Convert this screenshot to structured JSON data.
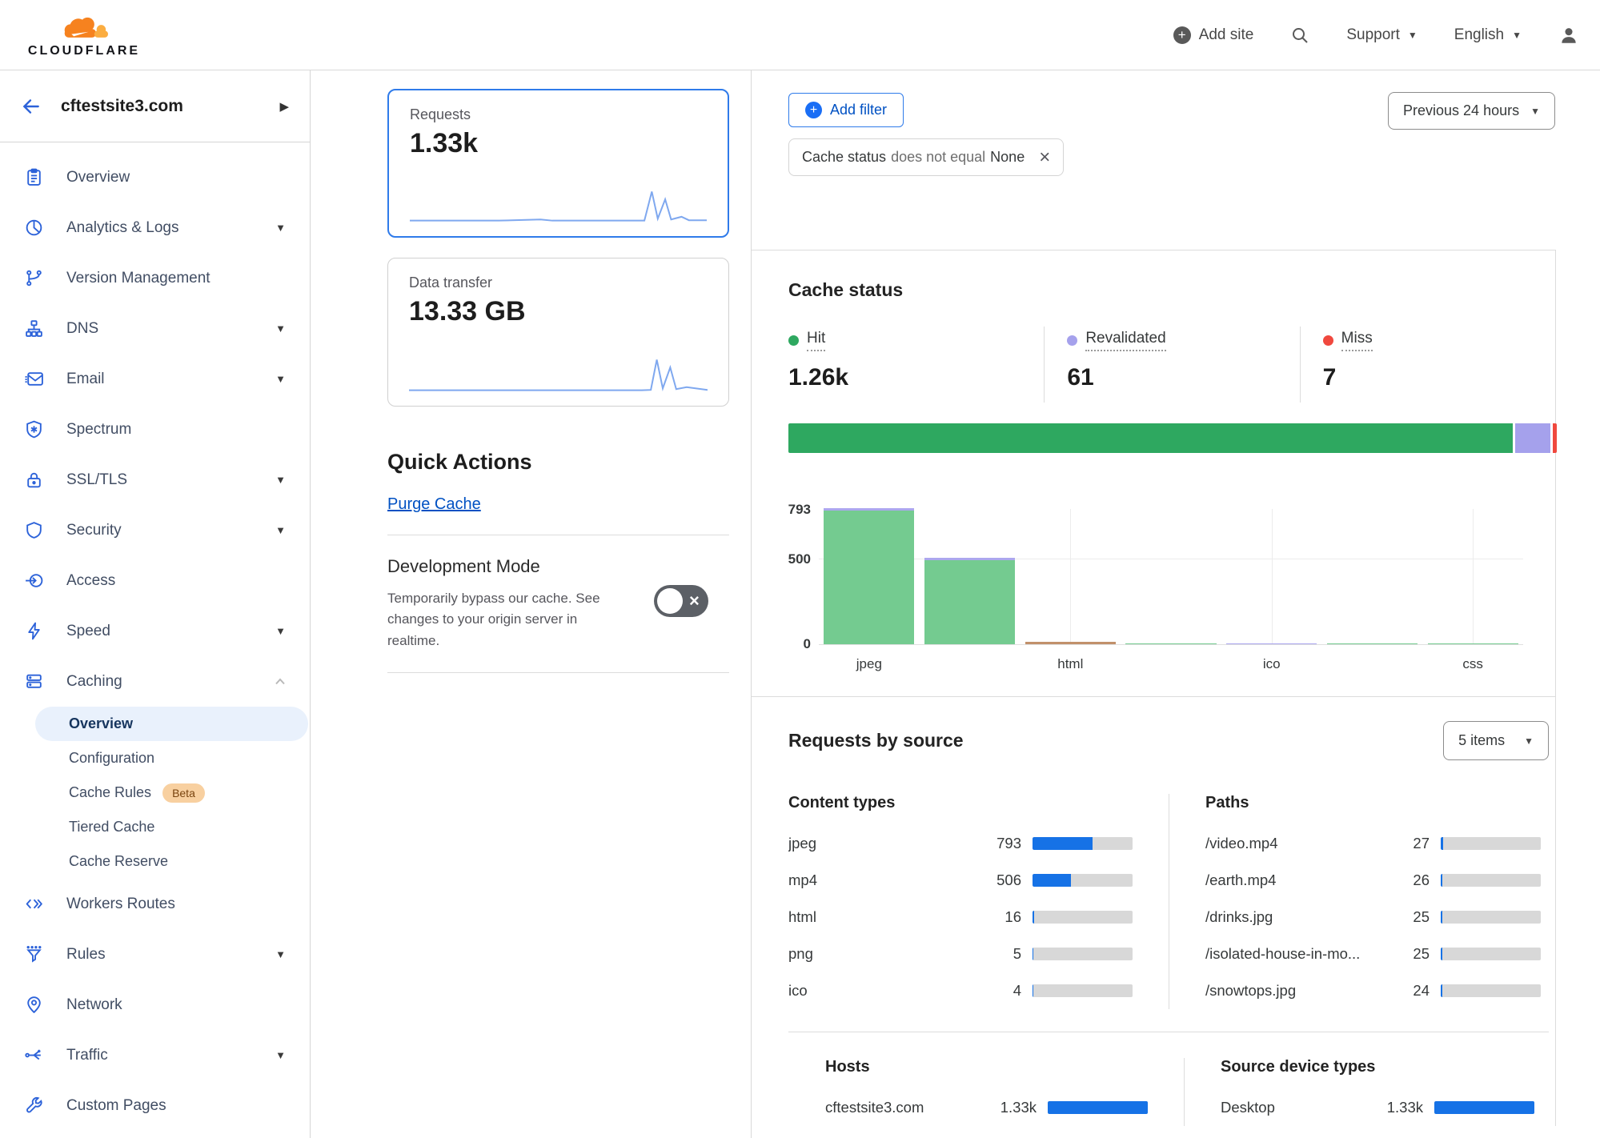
{
  "nav": {
    "logo_text": "CLOUDFLARE",
    "add_site_label": "Add site",
    "support_label": "Support",
    "language_label": "English"
  },
  "sidebar": {
    "site_name": "cftestsite3.com",
    "items": [
      {
        "label": "Overview"
      },
      {
        "label": "Analytics & Logs",
        "caret": "down"
      },
      {
        "label": "Version Management"
      },
      {
        "label": "DNS",
        "caret": "down"
      },
      {
        "label": "Email",
        "caret": "down"
      },
      {
        "label": "Spectrum"
      },
      {
        "label": "SSL/TLS",
        "caret": "down"
      },
      {
        "label": "Security",
        "caret": "down"
      },
      {
        "label": "Access"
      },
      {
        "label": "Speed",
        "caret": "down"
      },
      {
        "label": "Caching",
        "caret": "up",
        "expanded": true
      },
      {
        "label": "Workers Routes"
      },
      {
        "label": "Rules",
        "caret": "down"
      },
      {
        "label": "Network"
      },
      {
        "label": "Traffic",
        "caret": "down"
      },
      {
        "label": "Custom Pages"
      }
    ],
    "caching_sub": [
      {
        "label": "Overview",
        "active": true
      },
      {
        "label": "Configuration"
      },
      {
        "label": "Cache Rules",
        "badge": "Beta"
      },
      {
        "label": "Tiered Cache"
      },
      {
        "label": "Cache Reserve"
      }
    ]
  },
  "summary_cards": {
    "requests": {
      "label": "Requests",
      "value": "1.33k",
      "selected": true
    },
    "data_transfer": {
      "label": "Data transfer",
      "value": "13.33 GB",
      "selected": false
    }
  },
  "quick_actions": {
    "title": "Quick Actions",
    "purge_cache_label": "Purge Cache",
    "dev_mode": {
      "title": "Development Mode",
      "description": "Temporarily bypass our cache. See changes to your origin server in realtime.",
      "state": "off"
    }
  },
  "filters": {
    "add_filter_label": "Add filter",
    "chip": {
      "field": "Cache status",
      "operator": "does not equal",
      "value": "None"
    },
    "time_range": "Previous 24 hours"
  },
  "cache_status": {
    "title": "Cache status",
    "legend": [
      {
        "name": "Hit",
        "display": "1.26k",
        "color": "#2EA860"
      },
      {
        "name": "Revalidated",
        "display": "61",
        "color": "#A5A1EC"
      },
      {
        "name": "Miss",
        "display": "7",
        "color": "#F0483E"
      }
    ]
  },
  "requests_by_source": {
    "title": "Requests by source",
    "items_dropdown": "5 items",
    "total": 1330,
    "content_types": {
      "title": "Content types",
      "rows": [
        {
          "label": "jpeg",
          "display": "793",
          "value": 793
        },
        {
          "label": "mp4",
          "display": "506",
          "value": 506
        },
        {
          "label": "html",
          "display": "16",
          "value": 16
        },
        {
          "label": "png",
          "display": "5",
          "value": 5
        },
        {
          "label": "ico",
          "display": "4",
          "value": 4
        }
      ]
    },
    "paths": {
      "title": "Paths",
      "rows": [
        {
          "label": "/video.mp4",
          "display": "27",
          "value": 27
        },
        {
          "label": "/earth.mp4",
          "display": "26",
          "value": 26
        },
        {
          "label": "/drinks.jpg",
          "display": "25",
          "value": 25
        },
        {
          "label": "/isolated-house-in-mo...",
          "display": "25",
          "value": 25
        },
        {
          "label": "/snowtops.jpg",
          "display": "24",
          "value": 24
        }
      ]
    },
    "hosts": {
      "title": "Hosts",
      "rows": [
        {
          "label": "cftestsite3.com",
          "display": "1.33k",
          "value": 1330
        }
      ]
    },
    "devices": {
      "title": "Source device types",
      "rows": [
        {
          "label": "Desktop",
          "display": "1.33k",
          "value": 1330
        }
      ]
    }
  },
  "chart_data": [
    {
      "type": "line",
      "name": "requests-sparkline",
      "title": "Requests over previous 24 hours (sparkline, unlabeled axes)",
      "points": [
        [
          0,
          3
        ],
        [
          30,
          3
        ],
        [
          44,
          6
        ],
        [
          48,
          3
        ],
        [
          70,
          3
        ],
        [
          79,
          3
        ],
        [
          81.5,
          78
        ],
        [
          83.5,
          8
        ],
        [
          86,
          58
        ],
        [
          88,
          6
        ],
        [
          91.5,
          13
        ],
        [
          94,
          4
        ],
        [
          100,
          4
        ]
      ]
    },
    {
      "type": "line",
      "name": "data-transfer-sparkline",
      "title": "Data transfer over previous 24 hours (sparkline, unlabeled axes)",
      "points": [
        [
          0,
          3
        ],
        [
          40,
          3
        ],
        [
          60,
          3
        ],
        [
          78,
          3
        ],
        [
          81,
          4
        ],
        [
          83,
          82
        ],
        [
          85,
          8
        ],
        [
          87.5,
          62
        ],
        [
          89.5,
          6
        ],
        [
          93,
          11
        ],
        [
          100,
          4
        ]
      ]
    },
    {
      "type": "bar",
      "name": "cache-status-stacked-bar",
      "title": "Cache status distribution",
      "segments": [
        {
          "name": "Hit",
          "value": 1260,
          "color": "#2EA860"
        },
        {
          "name": "Revalidated",
          "value": 61,
          "color": "#A5A1EC"
        },
        {
          "name": "Miss",
          "value": 7,
          "color": "#F0483E"
        }
      ]
    },
    {
      "type": "bar",
      "name": "cache-status-by-content-type",
      "title": "Cache status by content type (stacked bars)",
      "ylim": [
        0,
        793
      ],
      "y_ticks": [
        "0",
        "500",
        "793"
      ],
      "grid": "horizontal at 500, vertical at labeled ticks",
      "colors": {
        "hit": "#74CB90",
        "revalidated": "#ACA7EE",
        "other": "#C1906B"
      },
      "bars": [
        {
          "tick": "jpeg",
          "segments": [
            {
              "name": "hit",
              "value": 778
            },
            {
              "name": "revalidated",
              "value": 15
            }
          ]
        },
        {
          "tick": "",
          "segments": [
            {
              "name": "hit",
              "value": 490
            },
            {
              "name": "revalidated",
              "value": 16
            }
          ]
        },
        {
          "tick": "html",
          "segments": [
            {
              "name": "other",
              "value": 16
            }
          ]
        },
        {
          "tick": "",
          "segments": [
            {
              "name": "hit",
              "value": 5
            }
          ]
        },
        {
          "tick": "ico",
          "segments": [
            {
              "name": "revalidated",
              "value": 4
            }
          ]
        },
        {
          "tick": "",
          "segments": [
            {
              "name": "hit",
              "value": 2
            }
          ]
        },
        {
          "tick": "css",
          "segments": [
            {
              "name": "hit",
              "value": 1
            }
          ]
        }
      ]
    }
  ]
}
